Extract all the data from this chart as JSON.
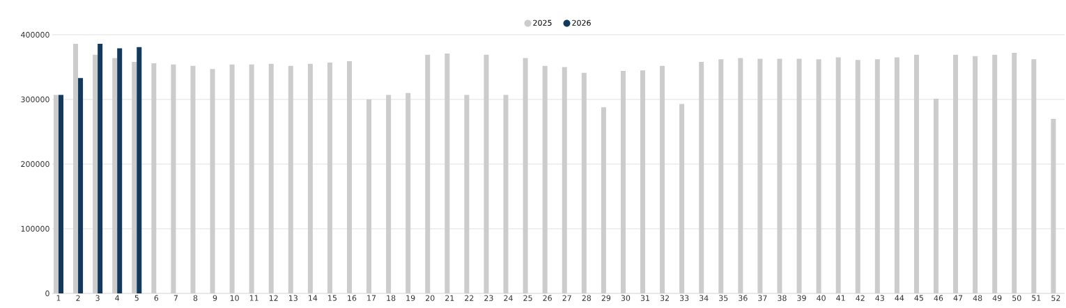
{
  "chart_data": {
    "type": "bar",
    "categories": [
      "1",
      "2",
      "3",
      "4",
      "5",
      "6",
      "7",
      "8",
      "9",
      "10",
      "11",
      "12",
      "13",
      "14",
      "15",
      "16",
      "17",
      "18",
      "19",
      "20",
      "21",
      "22",
      "23",
      "24",
      "25",
      "26",
      "27",
      "28",
      "29",
      "30",
      "31",
      "32",
      "33",
      "34",
      "35",
      "36",
      "37",
      "38",
      "39",
      "40",
      "41",
      "42",
      "43",
      "44",
      "45",
      "46",
      "47",
      "48",
      "49",
      "50",
      "51",
      "52"
    ],
    "series": [
      {
        "name": "2025",
        "color": "#cccccc",
        "values": [
          307000,
          386000,
          369000,
          364000,
          358000,
          356000,
          354000,
          352000,
          347000,
          354000,
          354000,
          355000,
          352000,
          355000,
          357000,
          359000,
          300000,
          307000,
          310000,
          369000,
          371000,
          307000,
          369000,
          307000,
          364000,
          352000,
          350000,
          341000,
          288000,
          344000,
          345000,
          352000,
          293000,
          358000,
          362000,
          364000,
          363000,
          363000,
          363000,
          362000,
          365000,
          361000,
          362000,
          365000,
          369000,
          301000,
          369000,
          367000,
          369000,
          372000,
          362000,
          270000
        ]
      },
      {
        "name": "2026",
        "color": "#133a5c",
        "values": [
          307000,
          333000,
          386000,
          379000,
          381000,
          null,
          null,
          null,
          null,
          null,
          null,
          null,
          null,
          null,
          null,
          null,
          null,
          null,
          null,
          null,
          null,
          null,
          null,
          null,
          null,
          null,
          null,
          null,
          null,
          null,
          null,
          null,
          null,
          null,
          null,
          null,
          null,
          null,
          null,
          null,
          null,
          null,
          null,
          null,
          null,
          null,
          null,
          null,
          null,
          null,
          null,
          null
        ]
      }
    ],
    "ylim": [
      0,
      400000
    ],
    "yticks": [
      0,
      100000,
      200000,
      300000,
      400000
    ],
    "grid": "y",
    "legend": "top"
  }
}
